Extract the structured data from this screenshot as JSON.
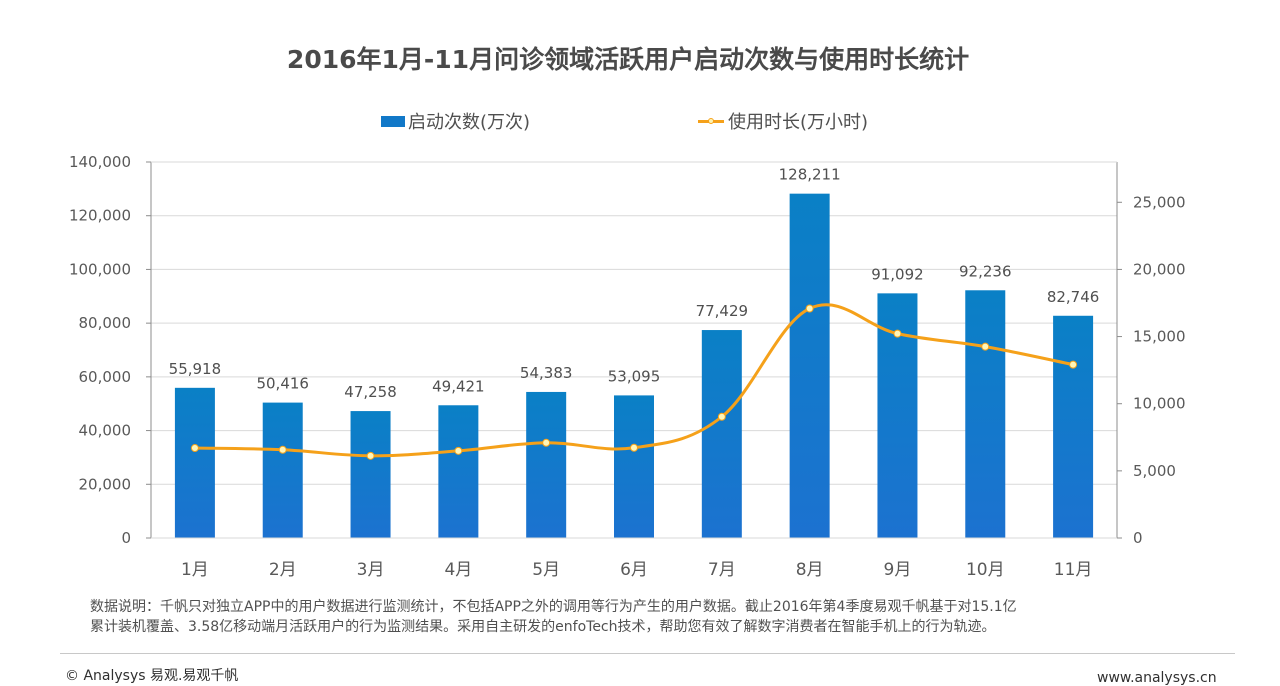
{
  "chart_data": {
    "type": "bar",
    "title": "2016年1月-11月问诊领域活跃用户启动次数与使用时长统计",
    "categories": [
      "1月",
      "2月",
      "3月",
      "4月",
      "5月",
      "6月",
      "7月",
      "8月",
      "9月",
      "10月",
      "11月"
    ],
    "series": [
      {
        "name": "启动次数(万次)",
        "type": "bar",
        "axis": "left",
        "color": "#1178c8",
        "values": [
          55918,
          50416,
          47258,
          49421,
          54383,
          53095,
          77429,
          128211,
          91092,
          92236,
          82746
        ],
        "data_labels": [
          "55,918",
          "50,416",
          "47,258",
          "49,421",
          "54,383",
          "53,095",
          "77,429",
          "128,211",
          "91,092",
          "92,236",
          "82,746"
        ]
      },
      {
        "name": "使用时长(万小时)",
        "type": "line",
        "axis": "right",
        "color": "#f5a11a",
        "values": [
          6700,
          6570,
          6120,
          6490,
          7090,
          6720,
          9030,
          17090,
          15220,
          14250,
          12910
        ]
      }
    ],
    "xlabel": "",
    "ylabel": "",
    "ylim": [
      0,
      140000
    ],
    "y2lim": [
      0,
      28000
    ],
    "yticks": [
      "0",
      "20,000",
      "40,000",
      "60,000",
      "80,000",
      "100,000",
      "120,000",
      "140,000"
    ],
    "y2ticks": [
      "0",
      "5,000",
      "10,000",
      "15,000",
      "20,000",
      "25,000"
    ],
    "grid": true,
    "legend_position": "top"
  },
  "legend": {
    "bar_label": "启动次数(万次)",
    "line_label": "使用时长(万小时)"
  },
  "note": {
    "line1": "数据说明：千帆只对独立APP中的用户数据进行监测统计，不包括APP之外的调用等行为产生的用户数据。截止2016年第4季度易观千帆基于对15.1亿",
    "line2": "累计装机覆盖、3.58亿移动端月活跃用户的行为监测结果。采用自主研发的enfoTech技术，帮助您有效了解数字消费者在智能手机上的行为轨迹。"
  },
  "footer": {
    "copyright": "© Analysys 易观.易观千帆",
    "website": "www.analysys.cn"
  }
}
